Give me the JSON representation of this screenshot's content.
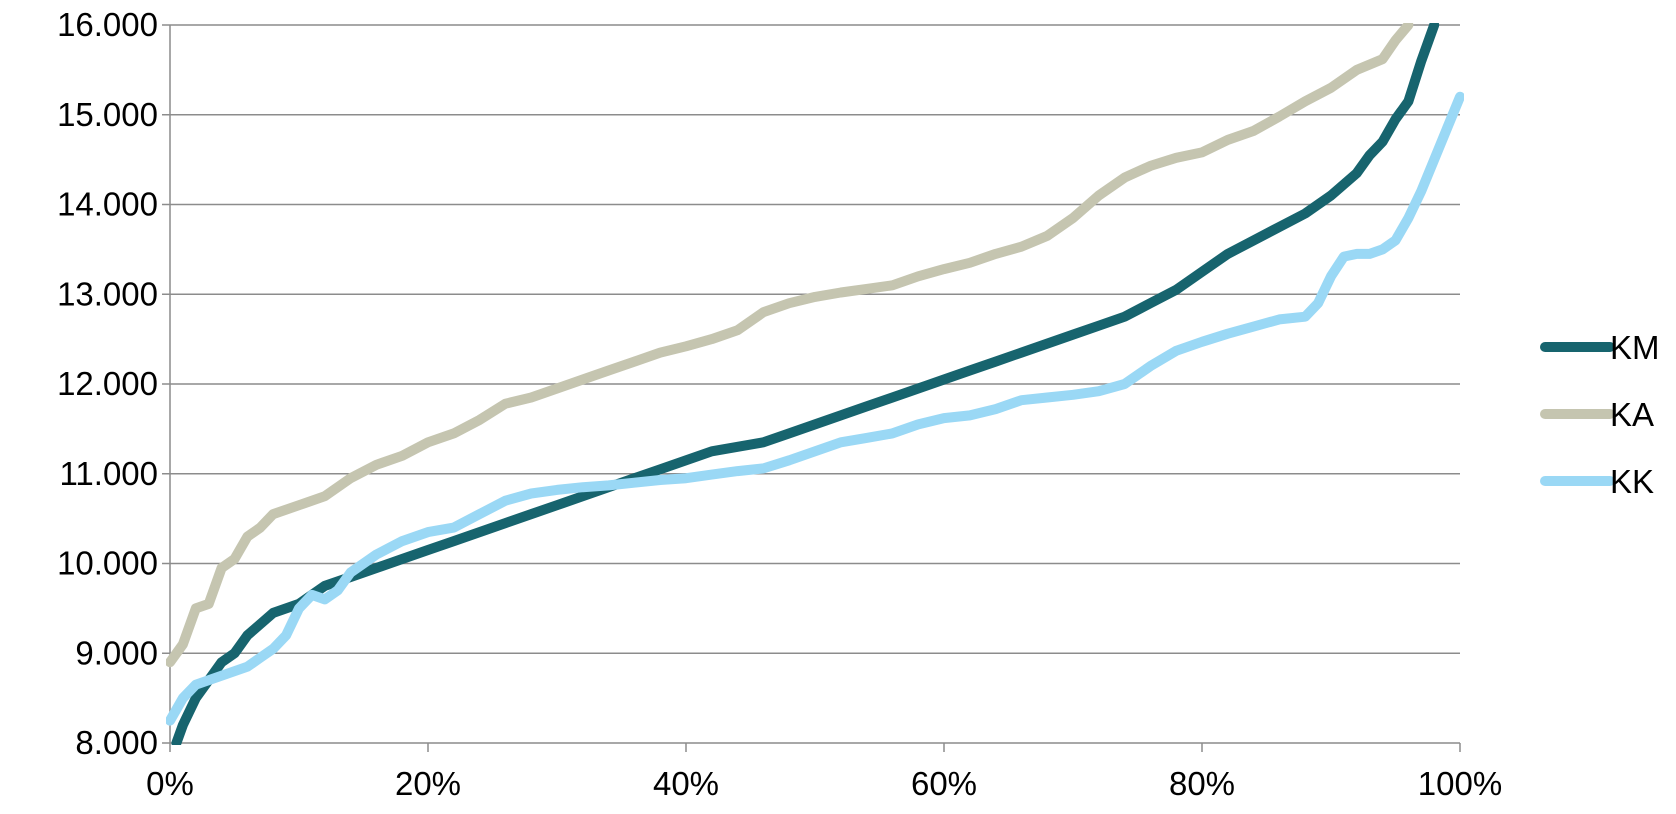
{
  "chart_data": {
    "type": "line",
    "title": "",
    "xlabel": "",
    "ylabel": "",
    "xlim": [
      0,
      100
    ],
    "ylim": [
      8000,
      16000
    ],
    "x_ticks": [
      0,
      20,
      40,
      60,
      80,
      100
    ],
    "x_tick_labels": [
      "0%",
      "20%",
      "40%",
      "60%",
      "80%",
      "100%"
    ],
    "y_ticks": [
      8000,
      9000,
      10000,
      11000,
      12000,
      13000,
      14000,
      15000,
      16000
    ],
    "y_tick_labels": [
      "8.000",
      "9.000",
      "10.000",
      "11.000",
      "12.000",
      "13.000",
      "14.000",
      "15.000",
      "16.000"
    ],
    "grid": "horizontal",
    "legend_placement": "right",
    "series": [
      {
        "name": "KM",
        "color": "#17646e",
        "x": [
          0.5,
          1,
          2,
          3,
          4,
          5,
          6,
          8,
          10,
          12,
          14,
          16,
          18,
          20,
          22,
          24,
          26,
          28,
          30,
          32,
          34,
          36,
          38,
          40,
          42,
          44,
          46,
          48,
          50,
          52,
          54,
          56,
          58,
          60,
          62,
          64,
          66,
          68,
          70,
          72,
          74,
          76,
          78,
          80,
          82,
          84,
          86,
          88,
          90,
          92,
          93,
          94,
          95,
          96,
          97,
          98
        ],
        "values": [
          8000,
          8200,
          8500,
          8700,
          8900,
          9000,
          9200,
          9450,
          9550,
          9750,
          9850,
          9950,
          10050,
          10150,
          10250,
          10350,
          10450,
          10550,
          10650,
          10750,
          10850,
          10950,
          11050,
          11150,
          11250,
          11300,
          11350,
          11450,
          11550,
          11650,
          11750,
          11850,
          11950,
          12050,
          12150,
          12250,
          12350,
          12450,
          12550,
          12650,
          12750,
          12900,
          13050,
          13250,
          13450,
          13600,
          13750,
          13900,
          14100,
          14350,
          14550,
          14700,
          14950,
          15150,
          15600,
          16000
        ]
      },
      {
        "name": "KA",
        "color": "#c5c5b0",
        "x": [
          0,
          1,
          2,
          3,
          4,
          5,
          6,
          7,
          8,
          10,
          12,
          14,
          16,
          18,
          20,
          22,
          24,
          26,
          28,
          30,
          32,
          34,
          36,
          38,
          40,
          42,
          44,
          46,
          48,
          50,
          52,
          54,
          56,
          58,
          60,
          62,
          64,
          66,
          68,
          70,
          72,
          74,
          76,
          78,
          80,
          82,
          84,
          86,
          88,
          90,
          92,
          94,
          95,
          96
        ],
        "values": [
          8900,
          9100,
          9500,
          9550,
          9950,
          10050,
          10300,
          10400,
          10550,
          10650,
          10750,
          10950,
          11100,
          11200,
          11350,
          11450,
          11600,
          11780,
          11850,
          11950,
          12050,
          12150,
          12250,
          12350,
          12420,
          12500,
          12600,
          12800,
          12900,
          12970,
          13020,
          13060,
          13100,
          13200,
          13280,
          13350,
          13450,
          13530,
          13650,
          13850,
          14100,
          14300,
          14430,
          14520,
          14580,
          14720,
          14820,
          14980,
          15150,
          15300,
          15500,
          15620,
          15830,
          16000
        ]
      },
      {
        "name": "KK",
        "color": "#9ad8f5",
        "x": [
          0,
          1,
          2,
          3,
          4,
          5,
          6,
          7,
          8,
          9,
          10,
          11,
          12,
          13,
          14,
          16,
          18,
          20,
          22,
          24,
          26,
          28,
          30,
          32,
          34,
          36,
          38,
          40,
          42,
          44,
          46,
          48,
          50,
          52,
          54,
          56,
          58,
          60,
          62,
          64,
          66,
          68,
          70,
          72,
          74,
          76,
          78,
          80,
          82,
          84,
          86,
          88,
          89,
          90,
          91,
          92,
          93,
          94,
          95,
          96,
          97,
          98,
          99,
          100
        ],
        "values": [
          8250,
          8500,
          8650,
          8700,
          8750,
          8800,
          8850,
          8950,
          9050,
          9200,
          9500,
          9650,
          9600,
          9700,
          9900,
          10100,
          10250,
          10350,
          10400,
          10550,
          10700,
          10780,
          10820,
          10850,
          10870,
          10900,
          10930,
          10950,
          10990,
          11030,
          11060,
          11150,
          11250,
          11350,
          11400,
          11450,
          11550,
          11620,
          11650,
          11720,
          11820,
          11850,
          11880,
          11920,
          12000,
          12200,
          12370,
          12470,
          12560,
          12640,
          12720,
          12750,
          12900,
          13200,
          13420,
          13450,
          13450,
          13500,
          13600,
          13850,
          14150,
          14500,
          14850,
          15200
        ]
      }
    ]
  }
}
